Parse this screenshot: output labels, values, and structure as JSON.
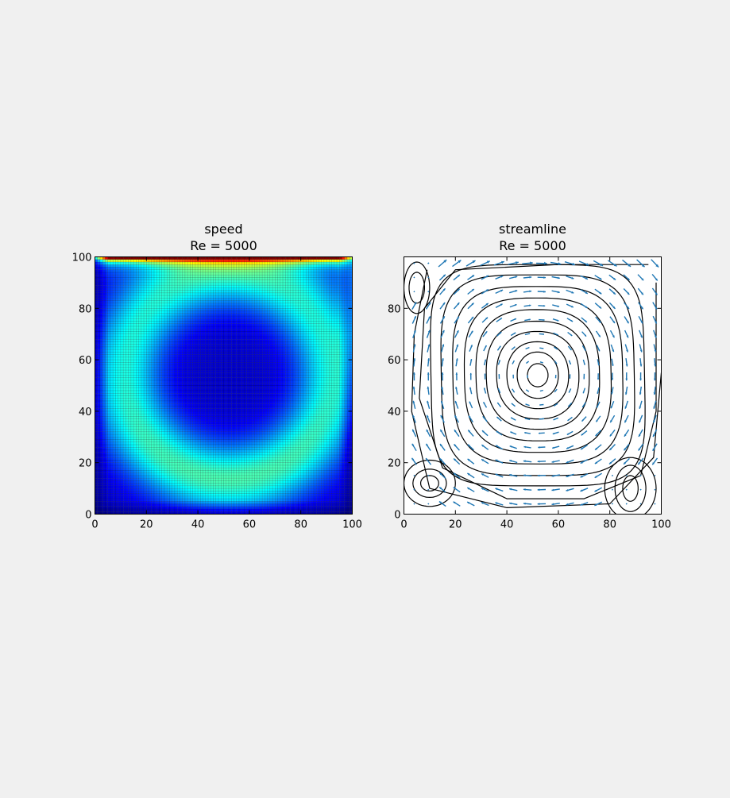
{
  "figure": {
    "background": "#f0f0f0"
  },
  "chart_data": [
    {
      "type": "heatmap",
      "title_line1": "speed",
      "title_line2": "Re = 5000",
      "xlabel": "",
      "ylabel": "",
      "xlim": [
        0,
        100
      ],
      "ylim": [
        0,
        100
      ],
      "xticks": [
        0,
        20,
        40,
        60,
        80,
        100
      ],
      "yticks": [
        0,
        20,
        40,
        60,
        80,
        100
      ],
      "grid_cells": 100,
      "colormap": "jet",
      "grid_lines": true,
      "value_range": [
        0,
        1
      ],
      "colorbar": false
    },
    {
      "type": "streamline",
      "title_line1": "streamline",
      "title_line2": "Re = 5000",
      "xlabel": "",
      "ylabel": "",
      "xlim": [
        0,
        100
      ],
      "ylim": [
        0,
        100
      ],
      "xticks": [
        0,
        20,
        40,
        60,
        80,
        100
      ],
      "yticks": [
        0,
        20,
        40,
        60,
        80
      ],
      "primary_vortex_center": [
        52,
        54
      ],
      "secondary_vortices": [
        {
          "location": "top-left",
          "center": [
            5,
            88
          ]
        },
        {
          "location": "bottom-left",
          "center": [
            10,
            12
          ]
        },
        {
          "location": "bottom-right",
          "center": [
            88,
            10
          ]
        }
      ],
      "streamline_color": "#000000",
      "arrow_color": "#1f77b4"
    }
  ]
}
